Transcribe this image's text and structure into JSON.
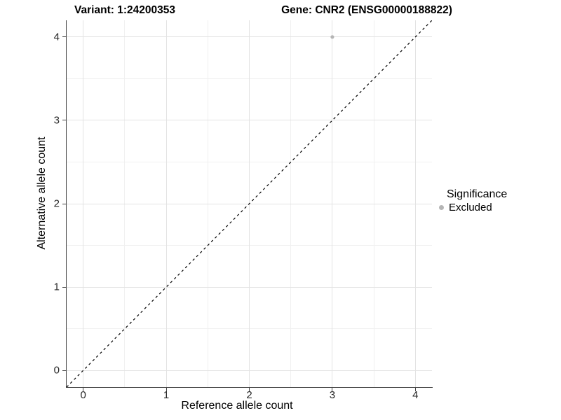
{
  "titles": {
    "variant_title": "Variant: 1:24200353",
    "gene_title": "Gene: CNR2 (ENSG00000188822)"
  },
  "axes": {
    "x": {
      "label": "Reference allele count",
      "tick_labels": [
        "0",
        "1",
        "2",
        "3",
        "4"
      ]
    },
    "y": {
      "label": "Alternative allele count",
      "tick_labels": [
        "0",
        "1",
        "2",
        "3",
        "4"
      ]
    }
  },
  "legend": {
    "title": "Significance",
    "items": [
      {
        "label": "Excluded",
        "color": "#b5b5b5"
      }
    ]
  },
  "chart_data": {
    "type": "scatter",
    "title": "Variant: 1:24200353 / Gene: CNR2 (ENSG00000188822)",
    "xlabel": "Reference allele count",
    "ylabel": "Alternative allele count",
    "xlim": [
      -0.2,
      4.2
    ],
    "ylim": [
      -0.2,
      4.2
    ],
    "x_major_ticks": [
      0,
      1,
      2,
      3,
      4
    ],
    "y_major_ticks": [
      0,
      1,
      2,
      3,
      4
    ],
    "x_minor_ticks": [
      0.5,
      1.5,
      2.5,
      3.5
    ],
    "y_minor_ticks": [
      0.5,
      1.5,
      2.5,
      3.5
    ],
    "grid": true,
    "legend_position": "right",
    "reference_line": {
      "type": "identity",
      "slope": 1,
      "intercept": 0,
      "style": "dashed",
      "color": "#000000"
    },
    "series": [
      {
        "name": "Excluded",
        "color": "#b5b5b5",
        "points": [
          {
            "x": 3,
            "y": 4
          }
        ]
      }
    ],
    "colors": {
      "grid_major": "#e3e3e3",
      "grid_minor": "#f0f0f0",
      "axis_line": "#444444",
      "point": "#b5b5b5",
      "background": "#ffffff"
    }
  }
}
